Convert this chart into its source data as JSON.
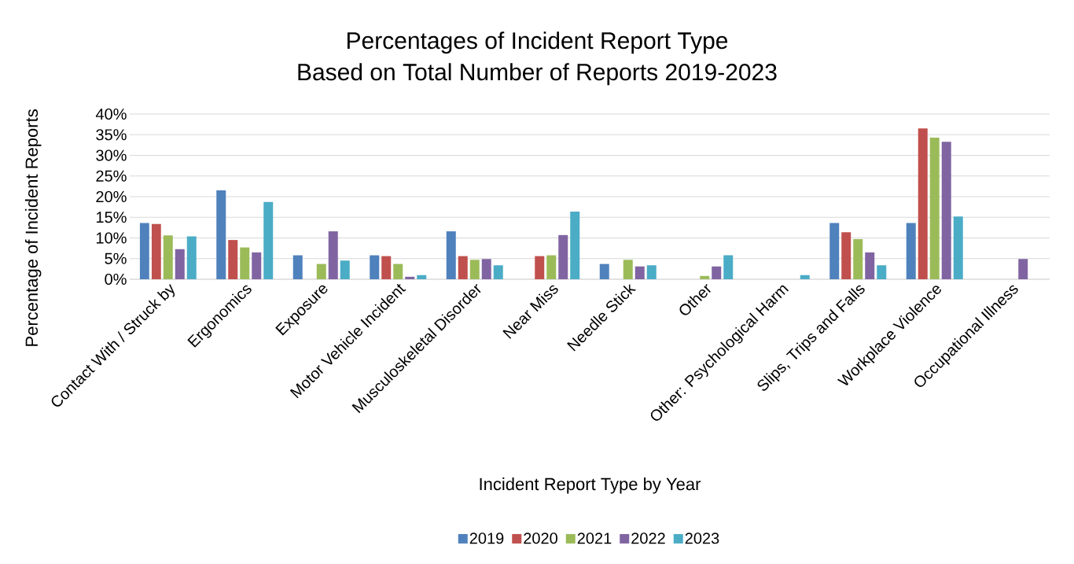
{
  "chart_data": {
    "type": "bar",
    "title": "Percentages of Incident Report Type",
    "subtitle": "Based on Total Number of Reports 2019-2023",
    "xlabel": "Incident Report Type by Year",
    "ylabel": "Percentage of Incident Reports",
    "categories": [
      "Contact With / Struck by",
      "Ergonomics",
      "Exposure",
      "Motor Vehicle Incident",
      "Musculoskeletal Disorder",
      "Near Miss",
      "Needle Stick",
      "Other",
      "Other: Psychological Harm",
      "Slips, Trips and Falls",
      "Workplace Violence",
      "Occupational Illness"
    ],
    "series": [
      {
        "name": "2019",
        "color": "#4f81bd",
        "values": [
          13.6,
          21.5,
          5.8,
          5.8,
          11.6,
          null,
          3.7,
          null,
          null,
          13.6,
          13.6,
          null
        ]
      },
      {
        "name": "2020",
        "color": "#c0504d",
        "values": [
          13.4,
          9.5,
          null,
          5.6,
          5.6,
          5.6,
          null,
          null,
          null,
          11.4,
          36.5,
          null
        ]
      },
      {
        "name": "2021",
        "color": "#9bbb59",
        "values": [
          10.6,
          7.7,
          3.7,
          3.7,
          4.7,
          5.8,
          4.7,
          0.8,
          null,
          9.7,
          34.3,
          null
        ]
      },
      {
        "name": "2022",
        "color": "#8064a2",
        "values": [
          7.3,
          6.5,
          11.6,
          0.6,
          4.9,
          10.7,
          3.1,
          3.1,
          null,
          6.5,
          33.3,
          4.9
        ]
      },
      {
        "name": "2023",
        "color": "#4bacc6",
        "values": [
          10.4,
          18.7,
          4.5,
          1.0,
          3.4,
          16.4,
          3.4,
          5.8,
          1.0,
          3.4,
          15.2,
          null
        ]
      }
    ],
    "ylim": [
      0,
      40
    ],
    "yticks": [
      {
        "value": 0,
        "label": "0%"
      },
      {
        "value": 5,
        "label": "5%"
      },
      {
        "value": 10,
        "label": "10%"
      },
      {
        "value": 15,
        "label": "15%"
      },
      {
        "value": 20,
        "label": "20%"
      },
      {
        "value": 25,
        "label": "25%"
      },
      {
        "value": 30,
        "label": "30%"
      },
      {
        "value": 35,
        "label": "35%"
      },
      {
        "value": 40,
        "label": "40%"
      }
    ],
    "grid": "y",
    "legend": "bottom"
  }
}
